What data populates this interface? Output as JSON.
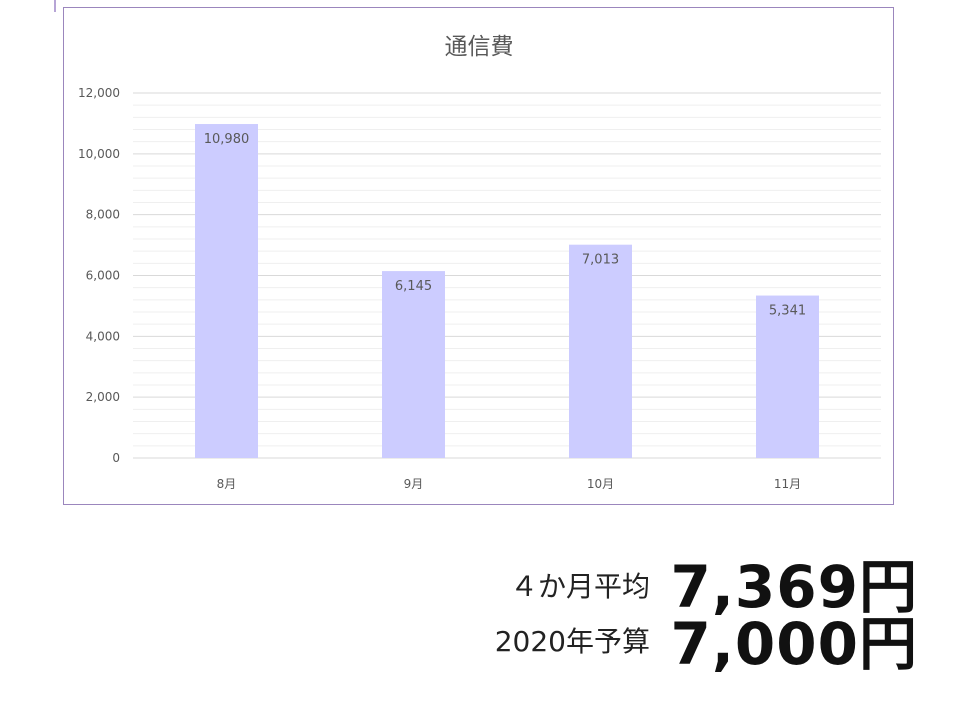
{
  "chart_data": {
    "type": "bar",
    "title": "通信費",
    "categories": [
      "8月",
      "9月",
      "10月",
      "11月"
    ],
    "values": [
      10980,
      6145,
      7013,
      5341
    ],
    "value_labels": [
      "10,980",
      "6,145",
      "7,013",
      "5,341"
    ],
    "ylim": [
      0,
      12000
    ],
    "yticks": [
      0,
      2000,
      4000,
      6000,
      8000,
      10000,
      12000
    ],
    "ytick_labels": [
      "0",
      "2,000",
      "4,000",
      "6,000",
      "8,000",
      "10,000",
      "12,000"
    ],
    "minor_gridlines": true,
    "bar_color": "#ccccff",
    "legend": "none"
  },
  "summary": {
    "avg_label": "４か月平均",
    "avg_value": "7,369円",
    "budget_label": "2020年予算",
    "budget_value": "7,000円"
  },
  "colors": {
    "frame_border": "#9b86bd",
    "major_grid": "#d9d9d9",
    "minor_grid": "#efefef",
    "text_gray": "#595959"
  }
}
